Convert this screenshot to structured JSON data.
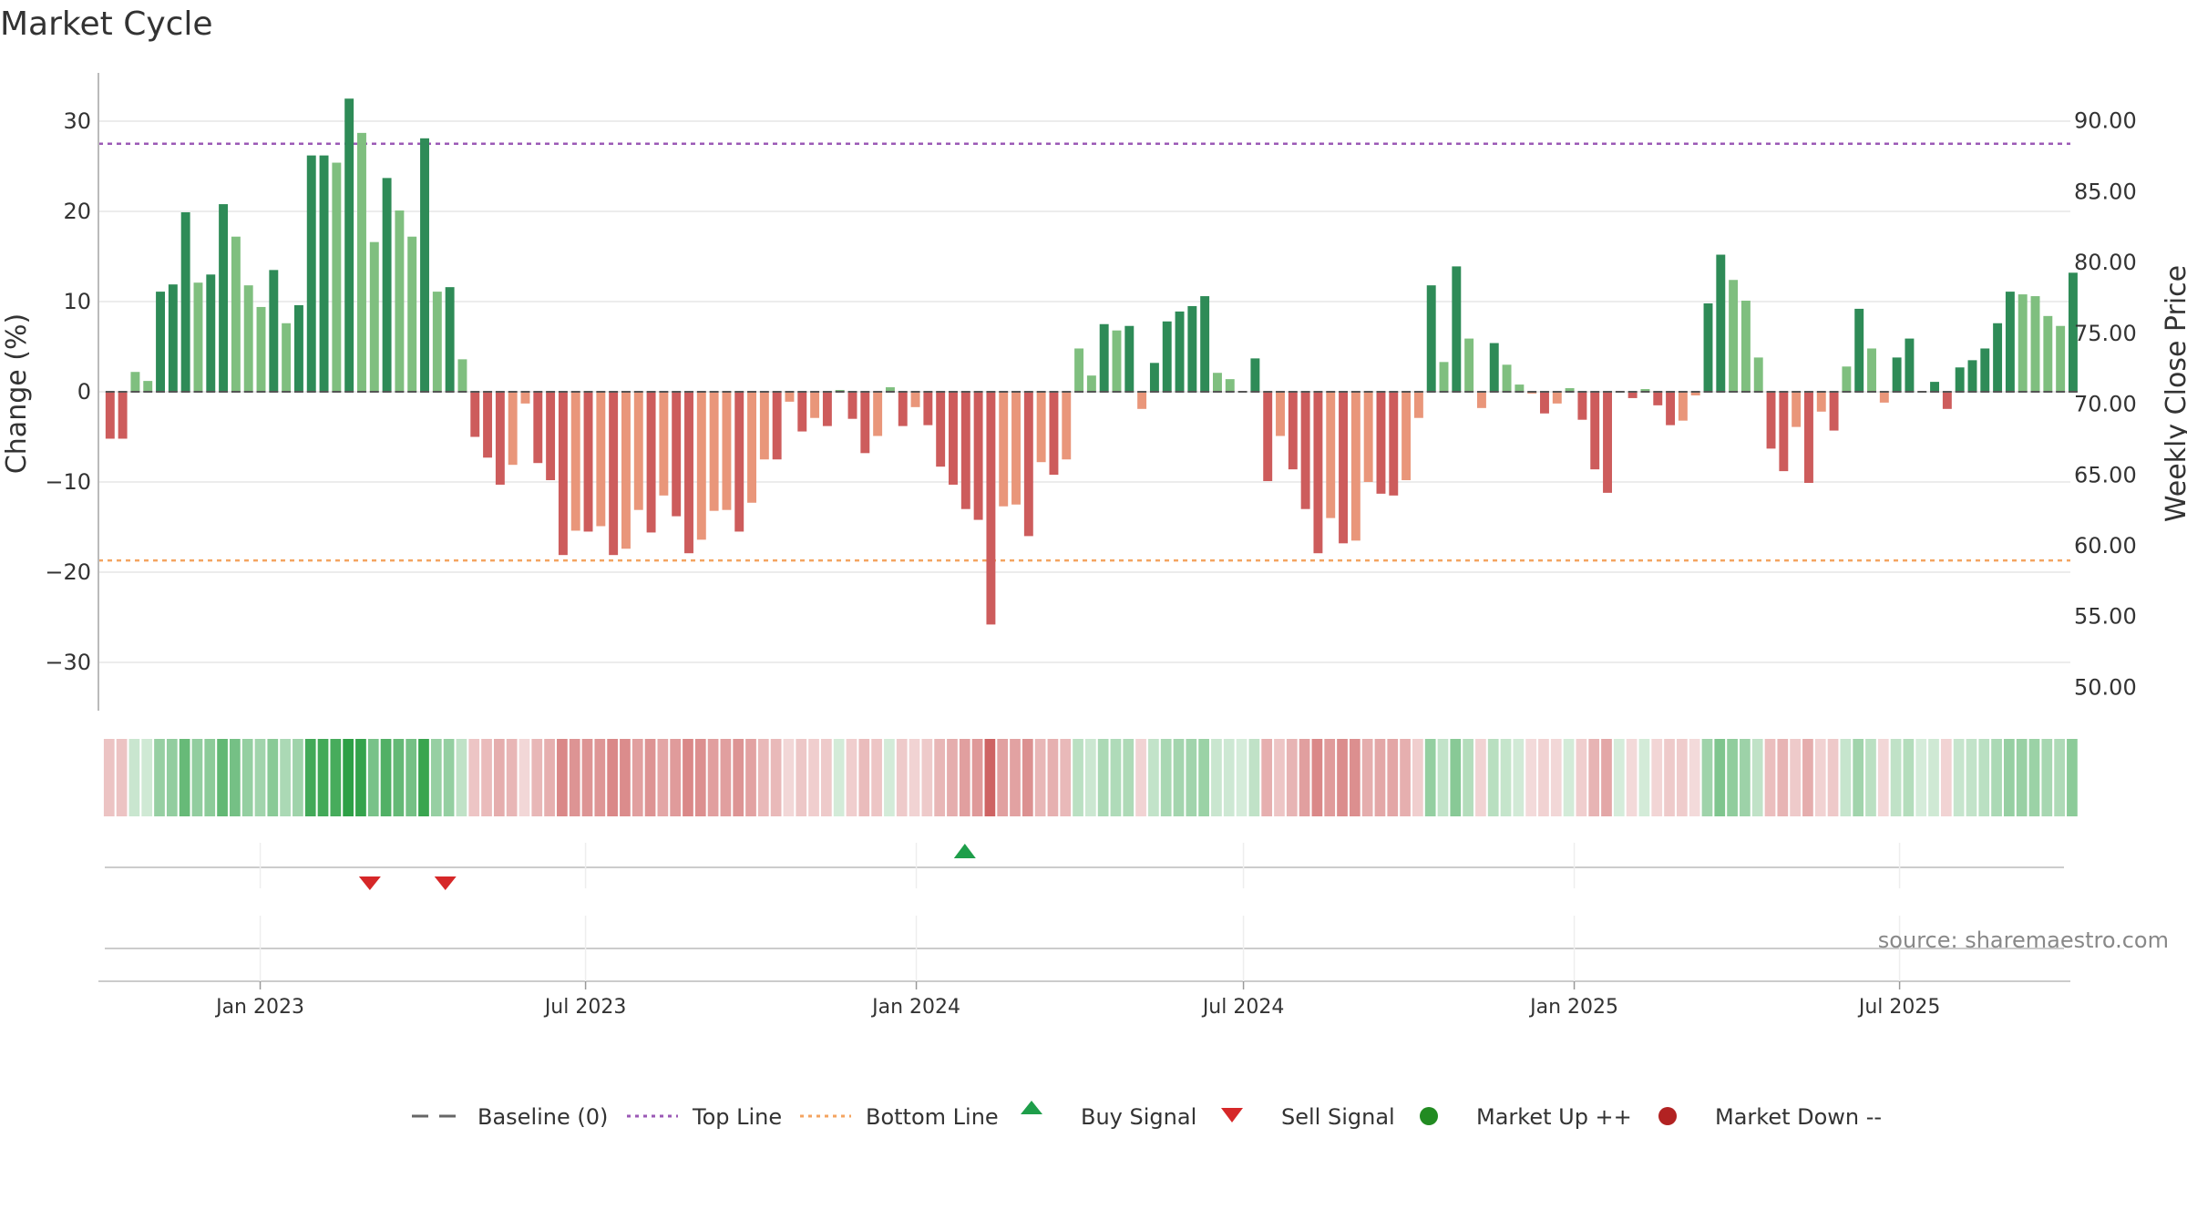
{
  "title": "Market Cycle",
  "source": "source: sharemaestro.com",
  "colors": {
    "up_strong": "#2e8b57",
    "up_light": "#7fbf7f",
    "down_strong": "#cd5c5c",
    "down_light": "#e9967a",
    "top_line": "#9b59b6",
    "bottom_line": "#f4a460",
    "baseline": "#666666",
    "buy": "#1e9e4a",
    "sell": "#d62728",
    "market_up": "#228b22",
    "market_down": "#b22222",
    "grid": "#e6e6e6"
  },
  "chart_data": {
    "type": "bar",
    "title": "Market Cycle",
    "ylabel_left": "Change (%)",
    "ylabel_right": "Weekly Close Price",
    "ylim_left": [
      -35,
      35
    ],
    "ylim_right": [
      49,
      93
    ],
    "yticks_left": [
      30,
      20,
      10,
      0,
      -10,
      -20,
      -30
    ],
    "yticks_left_labels": [
      "30",
      "20",
      "10",
      "0",
      "−10",
      "−20",
      "−30"
    ],
    "yticks_right": [
      90,
      85,
      80,
      75,
      70,
      65,
      60,
      55,
      50
    ],
    "yticks_right_labels": [
      "90.00",
      "85.00",
      "80.00",
      "75.00",
      "70.00",
      "65.00",
      "60.00",
      "55.00",
      "50.00"
    ],
    "x_start": "2022-10-03",
    "x_end": "2025-10-04",
    "week_starts": "2022-10-06",
    "xticks": [
      "2023-01-01",
      "2023-07-01",
      "2024-01-01",
      "2024-07-01",
      "2025-01-01",
      "2025-07-01"
    ],
    "xtick_labels": [
      "Jan 2023",
      "Jul 2023",
      "Jan 2024",
      "Jul 2024",
      "Jan 2025",
      "Jul 2025"
    ],
    "top_line": 27.5,
    "bottom_line": -18.7,
    "values": [
      -5.2,
      -5.2,
      2.2,
      1.2,
      11.1,
      11.9,
      19.9,
      12.1,
      13,
      20.8,
      17.2,
      11.8,
      9.4,
      13.5,
      7.6,
      9.6,
      26.2,
      26.2,
      25.4,
      32.5,
      28.7,
      16.6,
      23.7,
      20.1,
      17.2,
      28.1,
      11.1,
      11.6,
      3.6,
      -5,
      -7.3,
      -10.3,
      -8.1,
      -1.3,
      -7.9,
      -9.8,
      -18.1,
      -15.4,
      -15.5,
      -14.9,
      -18.1,
      -17.4,
      -13.1,
      -15.6,
      -11.5,
      -13.8,
      -17.9,
      -16.4,
      -13.2,
      -13.1,
      -15.5,
      -12.3,
      -7.5,
      -7.5,
      -1.1,
      -4.4,
      -2.9,
      -3.8,
      0.2,
      -3,
      -6.8,
      -4.9,
      0.5,
      -3.8,
      -1.7,
      -3.7,
      -8.3,
      -10.3,
      -13,
      -14.2,
      -25.8,
      -12.7,
      -12.5,
      -16,
      -7.8,
      -9.2,
      -7.5,
      4.8,
      1.8,
      7.5,
      6.8,
      7.3,
      -1.9,
      3.2,
      7.8,
      8.9,
      9.5,
      10.6,
      2.1,
      1.4,
      0.1,
      3.7,
      -9.9,
      -4.9,
      -8.6,
      -13,
      -17.9,
      -14,
      -16.8,
      -16.5,
      -10,
      -11.3,
      -11.5,
      -9.8,
      -2.9,
      11.8,
      3.3,
      13.9,
      5.9,
      -1.8,
      5.4,
      3,
      0.8,
      -0.2,
      -2.4,
      -1.3,
      0.4,
      -3.1,
      -8.6,
      -11.2,
      0,
      -0.7,
      0.3,
      -1.5,
      -3.7,
      -3.2,
      -0.4,
      9.8,
      15.2,
      12.4,
      10.1,
      3.8,
      -6.3,
      -8.8,
      -3.9,
      -10.1,
      -2.2,
      -4.3,
      2.8,
      9.2,
      4.8,
      -1.2,
      3.8,
      5.9,
      0,
      1.1,
      -1.9,
      2.7,
      3.5,
      4.8,
      7.6,
      11.1,
      10.8,
      10.6,
      8.4,
      7.3,
      13.2
    ],
    "signals": [
      {
        "type": "sell",
        "date": "2023-03-03"
      },
      {
        "type": "sell",
        "date": "2023-04-14"
      },
      {
        "type": "buy",
        "date": "2024-01-28"
      }
    ],
    "legend_position": "bottom-center",
    "legend": [
      {
        "label": "Baseline (0)",
        "kind": "dash"
      },
      {
        "label": "Top Line",
        "kind": "dot-purple"
      },
      {
        "label": "Bottom Line",
        "kind": "dot-orange"
      },
      {
        "label": "Buy Signal",
        "kind": "triangle-up"
      },
      {
        "label": "Sell Signal",
        "kind": "triangle-down"
      },
      {
        "label": "Market Up ++",
        "kind": "circle-green"
      },
      {
        "label": "Market Down --",
        "kind": "circle-red"
      }
    ]
  }
}
